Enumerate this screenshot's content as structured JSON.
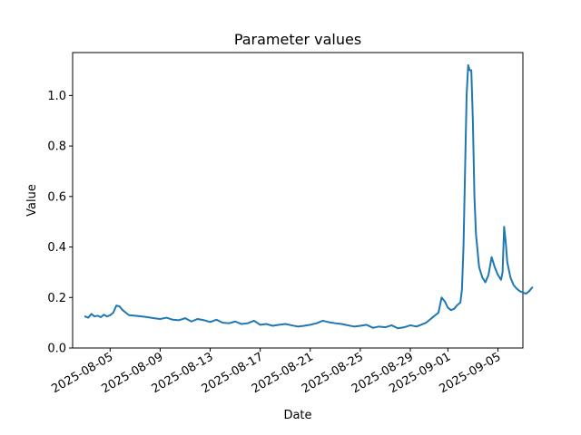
{
  "chart_data": {
    "type": "line",
    "title": "Parameter values",
    "xlabel": "Date",
    "ylabel": "Value",
    "xlim": [
      "2025-08-02",
      "2025-09-07"
    ],
    "ylim": [
      0,
      1.17
    ],
    "grid": false,
    "line_color": "#1f77b4",
    "x_ticks": [
      "2025-08-05",
      "2025-08-09",
      "2025-08-13",
      "2025-08-17",
      "2025-08-21",
      "2025-08-25",
      "2025-08-29",
      "2025-09-01",
      "2025-09-05"
    ],
    "y_ticks": [
      "0.0",
      "0.2",
      "0.4",
      "0.6",
      "0.8",
      "1.0"
    ],
    "series": [
      {
        "x": [
          "2025-08-03T00:00",
          "2025-08-03T06:00",
          "2025-08-03T12:00",
          "2025-08-03T18:00",
          "2025-08-04T00:00",
          "2025-08-04T06:00",
          "2025-08-04T12:00",
          "2025-08-04T18:00",
          "2025-08-05T00:00",
          "2025-08-05T06:00",
          "2025-08-05T12:00",
          "2025-08-05T18:00",
          "2025-08-06T00:00",
          "2025-08-06T12:00",
          "2025-08-07T00:00",
          "2025-08-07T12:00",
          "2025-08-08T00:00",
          "2025-08-08T12:00",
          "2025-08-09T00:00",
          "2025-08-09T12:00",
          "2025-08-10T00:00",
          "2025-08-10T12:00",
          "2025-08-11T00:00",
          "2025-08-11T12:00",
          "2025-08-12T00:00",
          "2025-08-12T12:00",
          "2025-08-13T00:00",
          "2025-08-13T12:00",
          "2025-08-14T00:00",
          "2025-08-14T12:00",
          "2025-08-15T00:00",
          "2025-08-15T12:00",
          "2025-08-16T00:00",
          "2025-08-16T12:00",
          "2025-08-17T00:00",
          "2025-08-17T12:00",
          "2025-08-18T00:00",
          "2025-08-18T12:00",
          "2025-08-19T00:00",
          "2025-08-19T12:00",
          "2025-08-20T00:00",
          "2025-08-20T12:00",
          "2025-08-21T00:00",
          "2025-08-21T12:00",
          "2025-08-22T00:00",
          "2025-08-22T12:00",
          "2025-08-23T00:00",
          "2025-08-23T12:00",
          "2025-08-24T00:00",
          "2025-08-24T12:00",
          "2025-08-25T00:00",
          "2025-08-25T12:00",
          "2025-08-26T00:00",
          "2025-08-26T12:00",
          "2025-08-27T00:00",
          "2025-08-27T12:00",
          "2025-08-28T00:00",
          "2025-08-28T12:00",
          "2025-08-29T00:00",
          "2025-08-29T12:00",
          "2025-08-30T00:00",
          "2025-08-30T06:00",
          "2025-08-30T12:00",
          "2025-08-30T18:00",
          "2025-08-31T00:00",
          "2025-08-31T06:00",
          "2025-08-31T12:00",
          "2025-08-31T18:00",
          "2025-09-01T00:00",
          "2025-09-01T06:00",
          "2025-09-01T12:00",
          "2025-09-01T18:00",
          "2025-09-02T00:00",
          "2025-09-02T03:00",
          "2025-09-02T06:00",
          "2025-09-02T09:00",
          "2025-09-02T12:00",
          "2025-09-02T15:00",
          "2025-09-02T18:00",
          "2025-09-02T21:00",
          "2025-09-03T00:00",
          "2025-09-03T03:00",
          "2025-09-03T06:00",
          "2025-09-03T12:00",
          "2025-09-03T18:00",
          "2025-09-04T00:00",
          "2025-09-04T06:00",
          "2025-09-04T12:00",
          "2025-09-04T18:00",
          "2025-09-05T00:00",
          "2025-09-05T06:00",
          "2025-09-05T09:00",
          "2025-09-05T12:00",
          "2025-09-05T15:00",
          "2025-09-05T18:00",
          "2025-09-06T00:00",
          "2025-09-06T06:00",
          "2025-09-06T12:00",
          "2025-09-06T18:00",
          "2025-09-07T00:00",
          "2025-09-07T06:00",
          "2025-09-07T12:00",
          "2025-09-07T18:00"
        ],
        "y": [
          0.125,
          0.12,
          0.135,
          0.125,
          0.128,
          0.122,
          0.132,
          0.125,
          0.13,
          0.14,
          0.168,
          0.165,
          0.15,
          0.13,
          0.128,
          0.125,
          0.122,
          0.118,
          0.115,
          0.12,
          0.112,
          0.11,
          0.118,
          0.105,
          0.115,
          0.11,
          0.103,
          0.112,
          0.1,
          0.098,
          0.105,
          0.095,
          0.098,
          0.108,
          0.092,
          0.095,
          0.088,
          0.092,
          0.095,
          0.09,
          0.085,
          0.088,
          0.092,
          0.098,
          0.108,
          0.102,
          0.098,
          0.095,
          0.09,
          0.085,
          0.088,
          0.092,
          0.08,
          0.085,
          0.082,
          0.09,
          0.078,
          0.082,
          0.09,
          0.085,
          0.095,
          0.1,
          0.11,
          0.12,
          0.13,
          0.14,
          0.2,
          0.185,
          0.16,
          0.15,
          0.155,
          0.17,
          0.18,
          0.23,
          0.4,
          0.7,
          1.0,
          1.12,
          1.1,
          1.1,
          0.9,
          0.6,
          0.45,
          0.32,
          0.28,
          0.26,
          0.29,
          0.36,
          0.32,
          0.29,
          0.27,
          0.3,
          0.48,
          0.42,
          0.34,
          0.28,
          0.25,
          0.235,
          0.225,
          0.22,
          0.215,
          0.225,
          0.24
        ]
      }
    ]
  }
}
